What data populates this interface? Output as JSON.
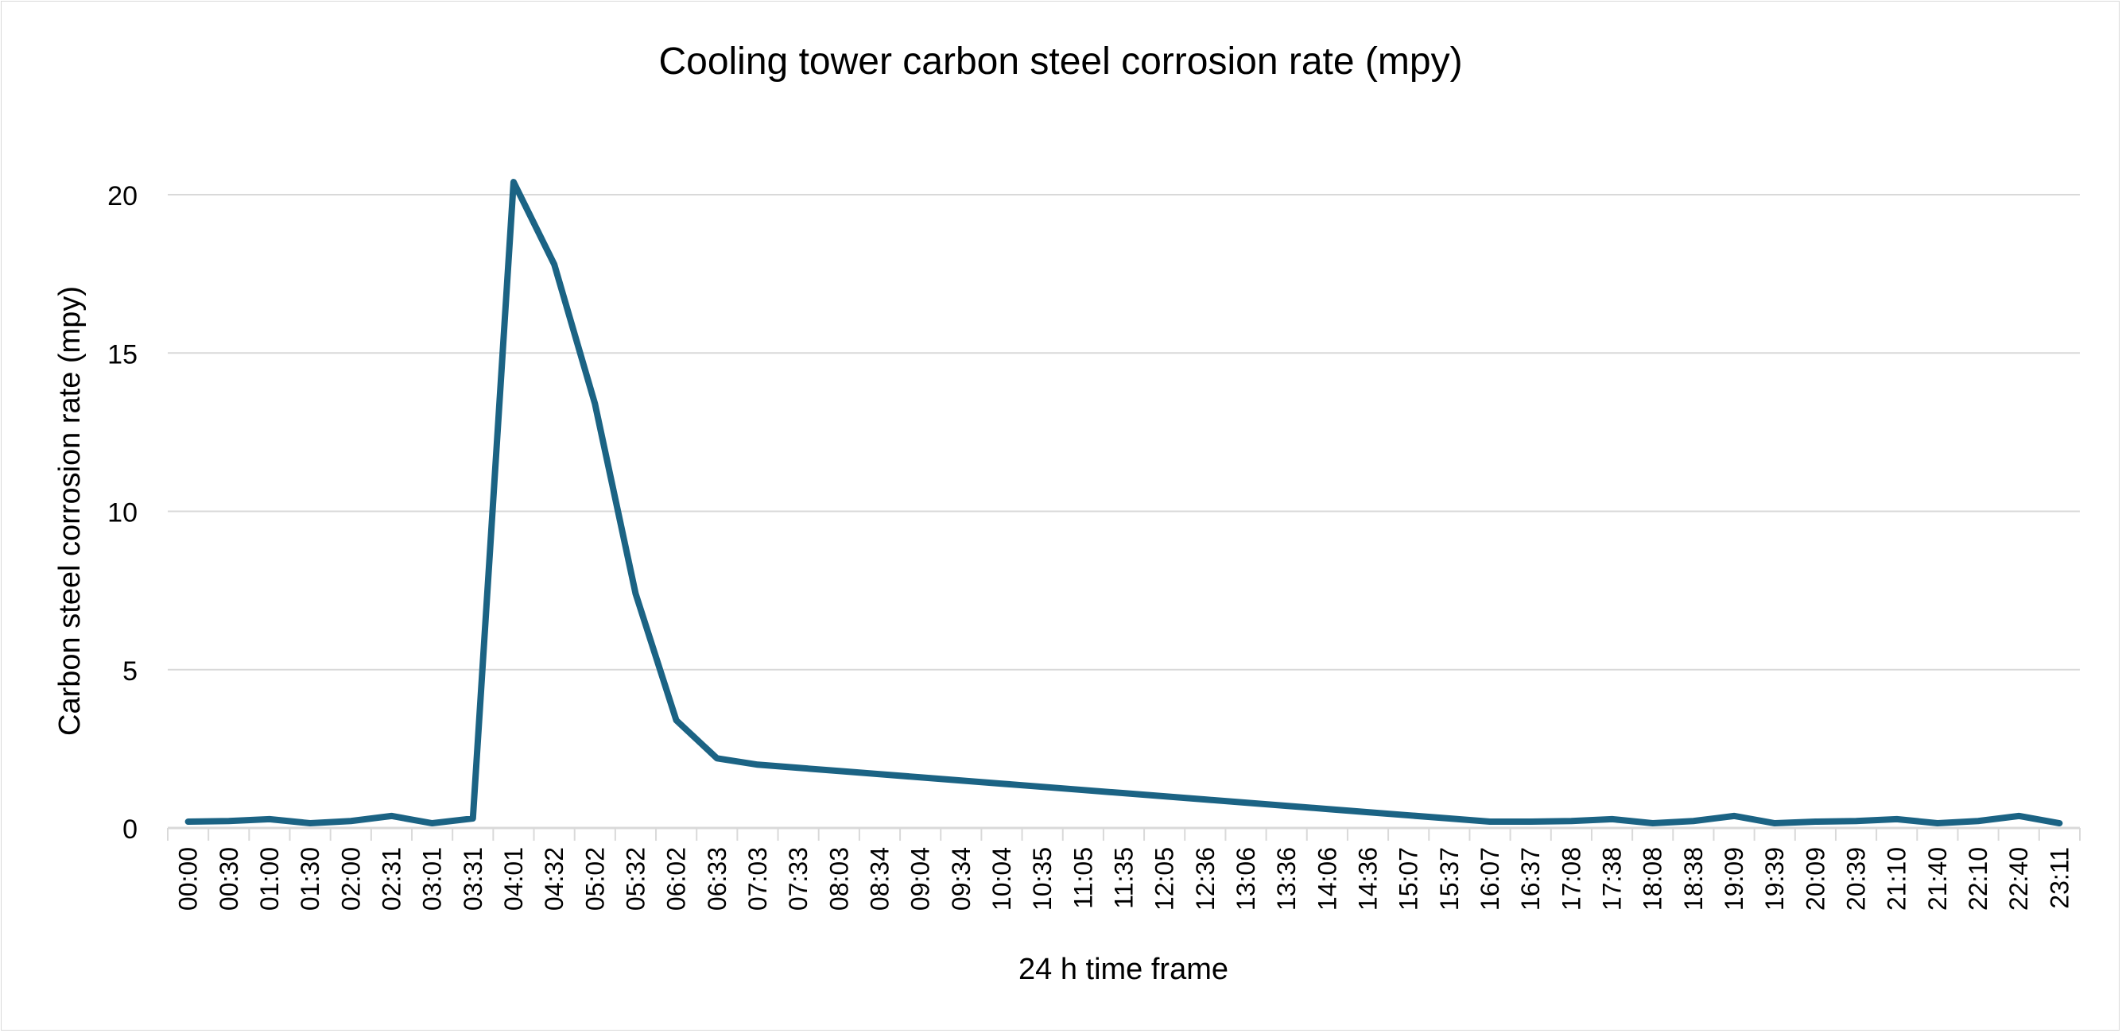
{
  "chart_data": {
    "type": "line",
    "title": "Cooling tower carbon steel corrosion rate (mpy)",
    "xlabel": "24 h time frame",
    "ylabel": "Carbon steel corrosion rate (mpy)",
    "ylim": [
      0,
      20
    ],
    "yticks": [
      0,
      5,
      10,
      15,
      20
    ],
    "grid": true,
    "legend": "none",
    "line_color": "#1b6384",
    "categories": [
      "00:00",
      "00:30",
      "01:00",
      "01:30",
      "02:00",
      "02:31",
      "03:01",
      "03:31",
      "04:01",
      "04:32",
      "05:02",
      "05:32",
      "06:02",
      "06:33",
      "07:03",
      "07:33",
      "08:03",
      "08:34",
      "09:04",
      "09:34",
      "10:04",
      "10:35",
      "11:05",
      "11:35",
      "12:05",
      "12:36",
      "13:06",
      "13:36",
      "14:06",
      "14:36",
      "15:07",
      "15:37",
      "16:07",
      "16:37",
      "17:08",
      "17:38",
      "18:08",
      "18:38",
      "19:09",
      "19:39",
      "20:09",
      "20:39",
      "21:10",
      "21:40",
      "22:10",
      "22:40",
      "23:11"
    ],
    "values": [
      0.2,
      0.22,
      0.28,
      0.15,
      0.22,
      0.38,
      0.15,
      0.3,
      20.4,
      17.8,
      13.4,
      7.4,
      3.4,
      2.2,
      2.0,
      1.9,
      1.8,
      1.7,
      1.6,
      1.5,
      1.4,
      1.3,
      1.2,
      1.1,
      1.0,
      0.9,
      0.8,
      0.7,
      0.6,
      0.5,
      0.4,
      0.3,
      0.2,
      0.2,
      0.22,
      0.28,
      0.15,
      0.22,
      0.38,
      0.15,
      0.2,
      0.22,
      0.28,
      0.15,
      0.22,
      0.38,
      0.15
    ]
  }
}
